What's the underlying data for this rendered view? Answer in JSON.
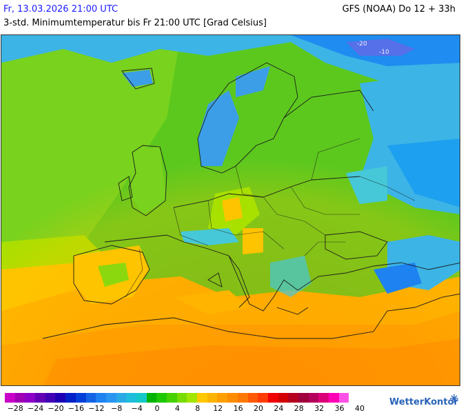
{
  "header": {
    "date": "Fr, 13.03.2026 21:00 UTC",
    "model": "GFS (NOAA) Do 12 + 33h",
    "title": "3-std. Minimumtemperatur bis Fr 21:00 UTC [Grad Celsius]"
  },
  "legend": {
    "ticks": [
      "−28",
      "−24",
      "−20",
      "−16",
      "−12",
      "−8",
      "−4",
      "0",
      "4",
      "8",
      "12",
      "16",
      "20",
      "24",
      "28",
      "32",
      "36",
      "40"
    ],
    "colors": [
      "#c800c8",
      "#a000b4",
      "#8c00c8",
      "#6400b4",
      "#4000b4",
      "#1e00b4",
      "#0020c8",
      "#0040d8",
      "#1464e6",
      "#1e82f0",
      "#2896f0",
      "#28aae6",
      "#1ebedc",
      "#14c8c8",
      "#00b400",
      "#1ec800",
      "#46d200",
      "#78dc00",
      "#a0e600",
      "#ffc800",
      "#ffb400",
      "#ffa000",
      "#ff8c00",
      "#ff7800",
      "#ff5a00",
      "#ff3c00",
      "#f00000",
      "#d20000",
      "#b4001e",
      "#a0003c",
      "#b4005a",
      "#dc0078",
      "#ff00b4",
      "#ff50e6"
    ]
  },
  "logo": {
    "text": "WetterKontor"
  },
  "map": {
    "contour_labels": [
      "-20",
      "-10"
    ]
  },
  "colors": {
    "date": "#1a1aff",
    "logo": "#2a64b8"
  }
}
